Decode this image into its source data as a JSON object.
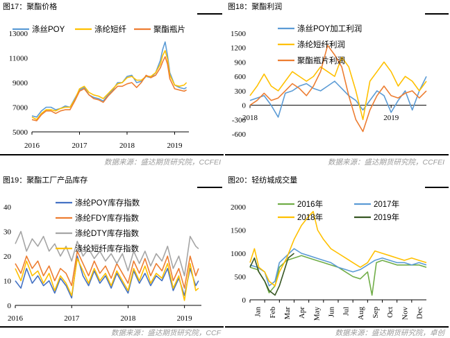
{
  "titles": [
    "图17：聚酯价格",
    "图18：聚酯利润",
    "图19：聚酯工厂产品库存",
    "图20：轻纺城成交量"
  ],
  "sources": [
    "数据来源：盛达期货研究院，CCFEI",
    "数据来源：盛达期货研究院，CCFEI",
    "数据来源：盛达期货研究院，CCF",
    "数据来源：盛达期货研究院，卓创"
  ],
  "colors": {
    "blue": "#4472C4",
    "gold": "#FFC000",
    "orange": "#ED7D31",
    "gray": "#A5A5A5",
    "green": "#70AD47",
    "darkgreen": "#375623",
    "lightblue": "#5B9BD5"
  },
  "chart_data": [
    {
      "type": "line",
      "title": "",
      "x_ticks": [
        "2016",
        "2017",
        "2018",
        "2019"
      ],
      "x_range": [
        2016.0,
        2019.3
      ],
      "ylim": [
        5000,
        13000
      ],
      "y_ticks": [
        5000,
        7000,
        9000,
        11000,
        13000
      ],
      "legend": "top",
      "series": [
        {
          "name": "涤丝POY",
          "color": "#5B9BD5",
          "x": [
            2016.0,
            2016.1,
            2016.2,
            2016.3,
            2016.4,
            2016.5,
            2016.6,
            2016.7,
            2016.8,
            2016.9,
            2017.0,
            2017.1,
            2017.2,
            2017.3,
            2017.4,
            2017.5,
            2017.6,
            2017.7,
            2017.8,
            2017.9,
            2018.0,
            2018.1,
            2018.2,
            2018.3,
            2018.4,
            2018.5,
            2018.6,
            2018.7,
            2018.75,
            2018.8,
            2018.85,
            2018.9,
            2019.0,
            2019.1,
            2019.2,
            2019.25
          ],
          "y": [
            6300,
            6200,
            6700,
            7000,
            7000,
            6800,
            6900,
            7100,
            7000,
            7700,
            8400,
            8600,
            8000,
            7800,
            7700,
            7500,
            8000,
            8400,
            9000,
            9000,
            9500,
            9600,
            9000,
            9100,
            9500,
            9400,
            9800,
            10800,
            11700,
            12300,
            11200,
            9800,
            8800,
            8600,
            8500,
            8600
          ]
        },
        {
          "name": "涤纶短纤",
          "color": "#FFC000",
          "x": [
            2016.0,
            2016.1,
            2016.2,
            2016.3,
            2016.4,
            2016.5,
            2016.6,
            2016.7,
            2016.8,
            2016.9,
            2017.0,
            2017.1,
            2017.2,
            2017.3,
            2017.4,
            2017.5,
            2017.6,
            2017.7,
            2017.8,
            2017.9,
            2018.0,
            2018.1,
            2018.2,
            2018.3,
            2018.4,
            2018.5,
            2018.6,
            2018.7,
            2018.75,
            2018.8,
            2018.85,
            2018.9,
            2019.0,
            2019.1,
            2019.2,
            2019.25
          ],
          "y": [
            6200,
            6000,
            6500,
            6800,
            6800,
            6700,
            6900,
            7000,
            7000,
            7600,
            8500,
            8700,
            8200,
            8000,
            7900,
            7700,
            8100,
            8500,
            8900,
            9000,
            9400,
            9500,
            9200,
            9200,
            9500,
            9500,
            9800,
            10500,
            11200,
            11600,
            10900,
            9600,
            8800,
            8700,
            8800,
            9000
          ]
        },
        {
          "name": "聚酯瓶片",
          "color": "#ED7D31",
          "x": [
            2016.0,
            2016.1,
            2016.2,
            2016.3,
            2016.4,
            2016.5,
            2016.6,
            2016.7,
            2016.8,
            2016.9,
            2017.0,
            2017.1,
            2017.2,
            2017.3,
            2017.4,
            2017.5,
            2017.6,
            2017.7,
            2017.8,
            2017.9,
            2018.0,
            2018.1,
            2018.2,
            2018.3,
            2018.4,
            2018.5,
            2018.6,
            2018.7,
            2018.75,
            2018.8,
            2018.85,
            2018.9,
            2019.0,
            2019.1,
            2019.2,
            2019.25
          ],
          "y": [
            6000,
            5900,
            6400,
            6700,
            6700,
            6500,
            6700,
            6800,
            6800,
            7500,
            8300,
            8500,
            8000,
            7700,
            7600,
            7400,
            7900,
            8300,
            8700,
            8700,
            8900,
            9000,
            8600,
            9000,
            9600,
            9400,
            9600,
            10200,
            10700,
            11100,
            10500,
            9300,
            8500,
            8400,
            8300,
            8400
          ]
        }
      ]
    },
    {
      "type": "line",
      "title": "",
      "x_ticks": [
        "2018",
        "2019"
      ],
      "x_range": [
        2018.0,
        2019.25
      ],
      "ylim": [
        -600,
        1500
      ],
      "y_ticks": [
        -600,
        -300,
        0,
        300,
        600,
        900,
        1200,
        1500
      ],
      "legend": "top-left",
      "series": [
        {
          "name": "涤丝POY加工利润",
          "color": "#5B9BD5",
          "x": [
            2018.0,
            2018.05,
            2018.1,
            2018.15,
            2018.2,
            2018.25,
            2018.3,
            2018.35,
            2018.4,
            2018.45,
            2018.5,
            2018.55,
            2018.6,
            2018.65,
            2018.7,
            2018.75,
            2018.8,
            2018.85,
            2018.9,
            2018.95,
            2019.0,
            2019.05,
            2019.1,
            2019.15,
            2019.2,
            2019.25
          ],
          "y": [
            100,
            150,
            200,
            0,
            -250,
            250,
            300,
            400,
            450,
            350,
            300,
            400,
            500,
            350,
            200,
            100,
            -100,
            100,
            300,
            200,
            -150,
            100,
            300,
            -100,
            300,
            600
          ]
        },
        {
          "name": "涤纶短纤利润",
          "color": "#FFC000",
          "x": [
            2018.0,
            2018.05,
            2018.1,
            2018.15,
            2018.2,
            2018.25,
            2018.3,
            2018.35,
            2018.4,
            2018.45,
            2018.5,
            2018.55,
            2018.6,
            2018.65,
            2018.7,
            2018.75,
            2018.8,
            2018.85,
            2018.9,
            2018.95,
            2019.0,
            2019.05,
            2019.1,
            2019.15,
            2019.2,
            2019.25
          ],
          "y": [
            200,
            400,
            650,
            400,
            300,
            500,
            700,
            600,
            500,
            600,
            800,
            700,
            600,
            1000,
            800,
            300,
            -300,
            500,
            700,
            900,
            700,
            400,
            600,
            500,
            300,
            500
          ]
        },
        {
          "name": "聚酯瓶片利润",
          "color": "#ED7D31",
          "x": [
            2018.0,
            2018.05,
            2018.1,
            2018.15,
            2018.2,
            2018.25,
            2018.3,
            2018.35,
            2018.4,
            2018.45,
            2018.5,
            2018.55,
            2018.6,
            2018.65,
            2018.7,
            2018.75,
            2018.8,
            2018.85,
            2018.9,
            2018.95,
            2019.0,
            2019.05,
            2019.1,
            2019.15,
            2019.2,
            2019.25
          ],
          "y": [
            0,
            100,
            250,
            100,
            150,
            300,
            450,
            350,
            200,
            400,
            700,
            1250,
            1050,
            800,
            200,
            -300,
            -550,
            -100,
            200,
            400,
            200,
            150,
            250,
            300,
            150,
            300
          ]
        }
      ]
    },
    {
      "type": "line",
      "title": "",
      "x_ticks": [
        "2016",
        "2017",
        "2018",
        "2019"
      ],
      "x_range": [
        2016.0,
        2019.3
      ],
      "ylim": [
        0,
        40
      ],
      "y_ticks": [
        0,
        10,
        20,
        30,
        40
      ],
      "legend": "top",
      "series": [
        {
          "name": "涤纶POY库存指数",
          "color": "#4472C4",
          "x": [
            2016.0,
            2016.1,
            2016.2,
            2016.3,
            2016.4,
            2016.5,
            2016.6,
            2016.7,
            2016.8,
            2016.9,
            2017.0,
            2017.1,
            2017.2,
            2017.3,
            2017.4,
            2017.5,
            2017.6,
            2017.7,
            2017.8,
            2017.9,
            2018.0,
            2018.1,
            2018.2,
            2018.3,
            2018.4,
            2018.5,
            2018.6,
            2018.7,
            2018.8,
            2018.9,
            2019.0,
            2019.1,
            2019.2,
            2019.25
          ],
          "y": [
            10,
            7,
            15,
            9,
            12,
            8,
            10,
            5,
            11,
            8,
            3,
            20,
            12,
            8,
            14,
            9,
            12,
            7,
            13,
            9,
            5,
            14,
            9,
            13,
            8,
            12,
            10,
            15,
            6,
            11,
            4,
            15,
            8,
            10
          ]
        },
        {
          "name": "涤纶FDY库存指数",
          "color": "#ED7D31",
          "x": [
            2016.0,
            2016.1,
            2016.2,
            2016.3,
            2016.4,
            2016.5,
            2016.6,
            2016.7,
            2016.8,
            2016.9,
            2017.0,
            2017.1,
            2017.2,
            2017.3,
            2017.4,
            2017.5,
            2017.6,
            2017.7,
            2017.8,
            2017.9,
            2018.0,
            2018.1,
            2018.2,
            2018.3,
            2018.4,
            2018.5,
            2018.6,
            2018.7,
            2018.8,
            2018.9,
            2019.0,
            2019.1,
            2019.2,
            2019.25
          ],
          "y": [
            17,
            13,
            20,
            15,
            18,
            12,
            16,
            10,
            15,
            13,
            8,
            22,
            17,
            12,
            18,
            13,
            16,
            11,
            17,
            13,
            9,
            18,
            13,
            19,
            12,
            17,
            14,
            20,
            10,
            15,
            7,
            20,
            12,
            15
          ]
        },
        {
          "name": "涤纶DTY库存指数",
          "color": "#A5A5A5",
          "x": [
            2016.0,
            2016.1,
            2016.2,
            2016.3,
            2016.4,
            2016.5,
            2016.6,
            2016.7,
            2016.8,
            2016.9,
            2017.0,
            2017.1,
            2017.2,
            2017.3,
            2017.4,
            2017.5,
            2017.6,
            2017.7,
            2017.8,
            2017.9,
            2018.0,
            2018.1,
            2018.2,
            2018.3,
            2018.4,
            2018.5,
            2018.6,
            2018.7,
            2018.8,
            2018.9,
            2019.0,
            2019.1,
            2019.2,
            2019.25
          ],
          "y": [
            25,
            30,
            22,
            27,
            24,
            28,
            22,
            25,
            20,
            24,
            18,
            26,
            20,
            23,
            19,
            22,
            18,
            21,
            17,
            21,
            14,
            22,
            17,
            22,
            16,
            21,
            18,
            24,
            15,
            20,
            12,
            28,
            24,
            23
          ]
        },
        {
          "name": "涤纶短纤库存指数",
          "color": "#FFC000",
          "x": [
            2016.0,
            2016.1,
            2016.2,
            2016.3,
            2016.4,
            2016.5,
            2016.6,
            2016.7,
            2016.8,
            2016.9,
            2017.0,
            2017.1,
            2017.2,
            2017.3,
            2017.4,
            2017.5,
            2017.6,
            2017.7,
            2017.8,
            2017.9,
            2018.0,
            2018.1,
            2018.2,
            2018.3,
            2018.4,
            2018.5,
            2018.6,
            2018.7,
            2018.8,
            2018.9,
            2019.0,
            2019.1,
            2019.2,
            2019.25
          ],
          "y": [
            15,
            10,
            18,
            12,
            14,
            9,
            13,
            6,
            12,
            9,
            4,
            19,
            14,
            9,
            15,
            10,
            13,
            8,
            14,
            10,
            6,
            15,
            10,
            16,
            9,
            13,
            11,
            17,
            7,
            12,
            2,
            17,
            6,
            7
          ]
        }
      ]
    },
    {
      "type": "line",
      "title": "",
      "x_ticks": [
        "Jan",
        "Feb",
        "Mar",
        "Apr",
        "May",
        "Jun",
        "Jul",
        "Aug",
        "Sep",
        "Oct",
        "Nov",
        "Dec"
      ],
      "x_range": [
        0,
        12
      ],
      "ylim": [
        0,
        2000
      ],
      "y_ticks": [
        0,
        500,
        1000,
        1500,
        2000
      ],
      "legend": "top",
      "series": [
        {
          "name": "2016年",
          "color": "#70AD47",
          "x": [
            0,
            0.5,
            1,
            1.3,
            1.7,
            2,
            2.5,
            3,
            3.5,
            4,
            4.5,
            5,
            5.5,
            6,
            6.5,
            7,
            7.5,
            8,
            8.3,
            8.6,
            9,
            9.5,
            10,
            10.5,
            11,
            11.5,
            12
          ],
          "y": [
            700,
            650,
            400,
            150,
            300,
            700,
            850,
            900,
            950,
            900,
            850,
            800,
            750,
            700,
            600,
            500,
            450,
            600,
            100,
            800,
            850,
            800,
            750,
            750,
            750,
            750,
            700
          ]
        },
        {
          "name": "2017年",
          "color": "#5B9BD5",
          "x": [
            0,
            0.5,
            1,
            1.3,
            1.7,
            2,
            2.5,
            3,
            3.5,
            4,
            4.5,
            5,
            5.5,
            6,
            6.5,
            7,
            7.5,
            8,
            8.5,
            9,
            9.5,
            10,
            10.5,
            11,
            11.5,
            12
          ],
          "y": [
            750,
            700,
            600,
            300,
            400,
            800,
            950,
            1100,
            1000,
            950,
            900,
            850,
            800,
            700,
            650,
            600,
            650,
            750,
            850,
            900,
            850,
            800,
            800,
            750,
            800,
            750
          ]
        },
        {
          "name": "2018年",
          "color": "#FFC000",
          "x": [
            0,
            0.3,
            0.6,
            1,
            1.3,
            1.7,
            2,
            2.5,
            3,
            3.5,
            4,
            4.3,
            4.6,
            5,
            5.5,
            6,
            6.5,
            7,
            7.5,
            8,
            8.5,
            9,
            9.5,
            10,
            10.5,
            11,
            11.5,
            12
          ],
          "y": [
            800,
            1100,
            700,
            600,
            400,
            300,
            600,
            900,
            1300,
            1600,
            1800,
            1900,
            1500,
            1300,
            1100,
            1000,
            900,
            800,
            700,
            800,
            1050,
            1000,
            950,
            900,
            850,
            900,
            850,
            800
          ]
        },
        {
          "name": "2019年",
          "color": "#375623",
          "x": [
            0,
            0.3,
            0.6,
            1,
            1.3,
            1.7,
            2,
            2.3,
            2.6,
            3
          ],
          "y": [
            700,
            900,
            600,
            400,
            200,
            100,
            300,
            600,
            900,
            1000
          ]
        }
      ]
    }
  ]
}
